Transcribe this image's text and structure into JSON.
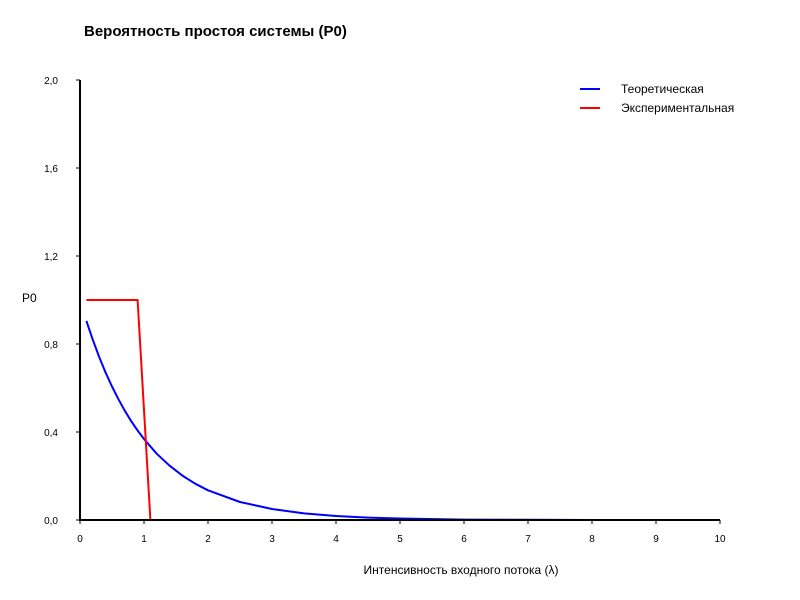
{
  "chart_data": {
    "type": "line",
    "title": "Вероятность простоя системы (P0)",
    "xlabel": "Интенсивность входного потока (λ)",
    "ylabel": "P0",
    "xlim": [
      0,
      10
    ],
    "ylim": [
      0,
      2
    ],
    "x_ticks": [
      "0",
      "1",
      "2",
      "3",
      "4",
      "5",
      "6",
      "7",
      "8",
      "9",
      "10"
    ],
    "y_ticks": [
      "0,0",
      "0,4",
      "0,8",
      "1,2",
      "1,6",
      "2,0"
    ],
    "grid": false,
    "legend_position": "top-right",
    "series": [
      {
        "name": "Теоретическая",
        "color": "#0000ff",
        "x": [
          0.1,
          0.2,
          0.3,
          0.4,
          0.5,
          0.6,
          0.7,
          0.8,
          0.9,
          1.0,
          1.2,
          1.4,
          1.6,
          1.8,
          2.0,
          2.5,
          3.0,
          3.5,
          4.0,
          4.5,
          5.0,
          6.0,
          7.0,
          8.0,
          9.0,
          10.0
        ],
        "y": [
          0.905,
          0.819,
          0.741,
          0.67,
          0.607,
          0.549,
          0.497,
          0.449,
          0.407,
          0.368,
          0.301,
          0.247,
          0.202,
          0.165,
          0.135,
          0.082,
          0.05,
          0.03,
          0.018,
          0.011,
          0.007,
          0.002,
          0.001,
          0.0,
          0.0,
          0.0
        ]
      },
      {
        "name": "Экспериментальная",
        "color": "#ff0000",
        "x": [
          0.1,
          0.9,
          1.1,
          10.0
        ],
        "y": [
          1.0,
          1.0,
          0.0,
          0.0
        ]
      }
    ]
  }
}
